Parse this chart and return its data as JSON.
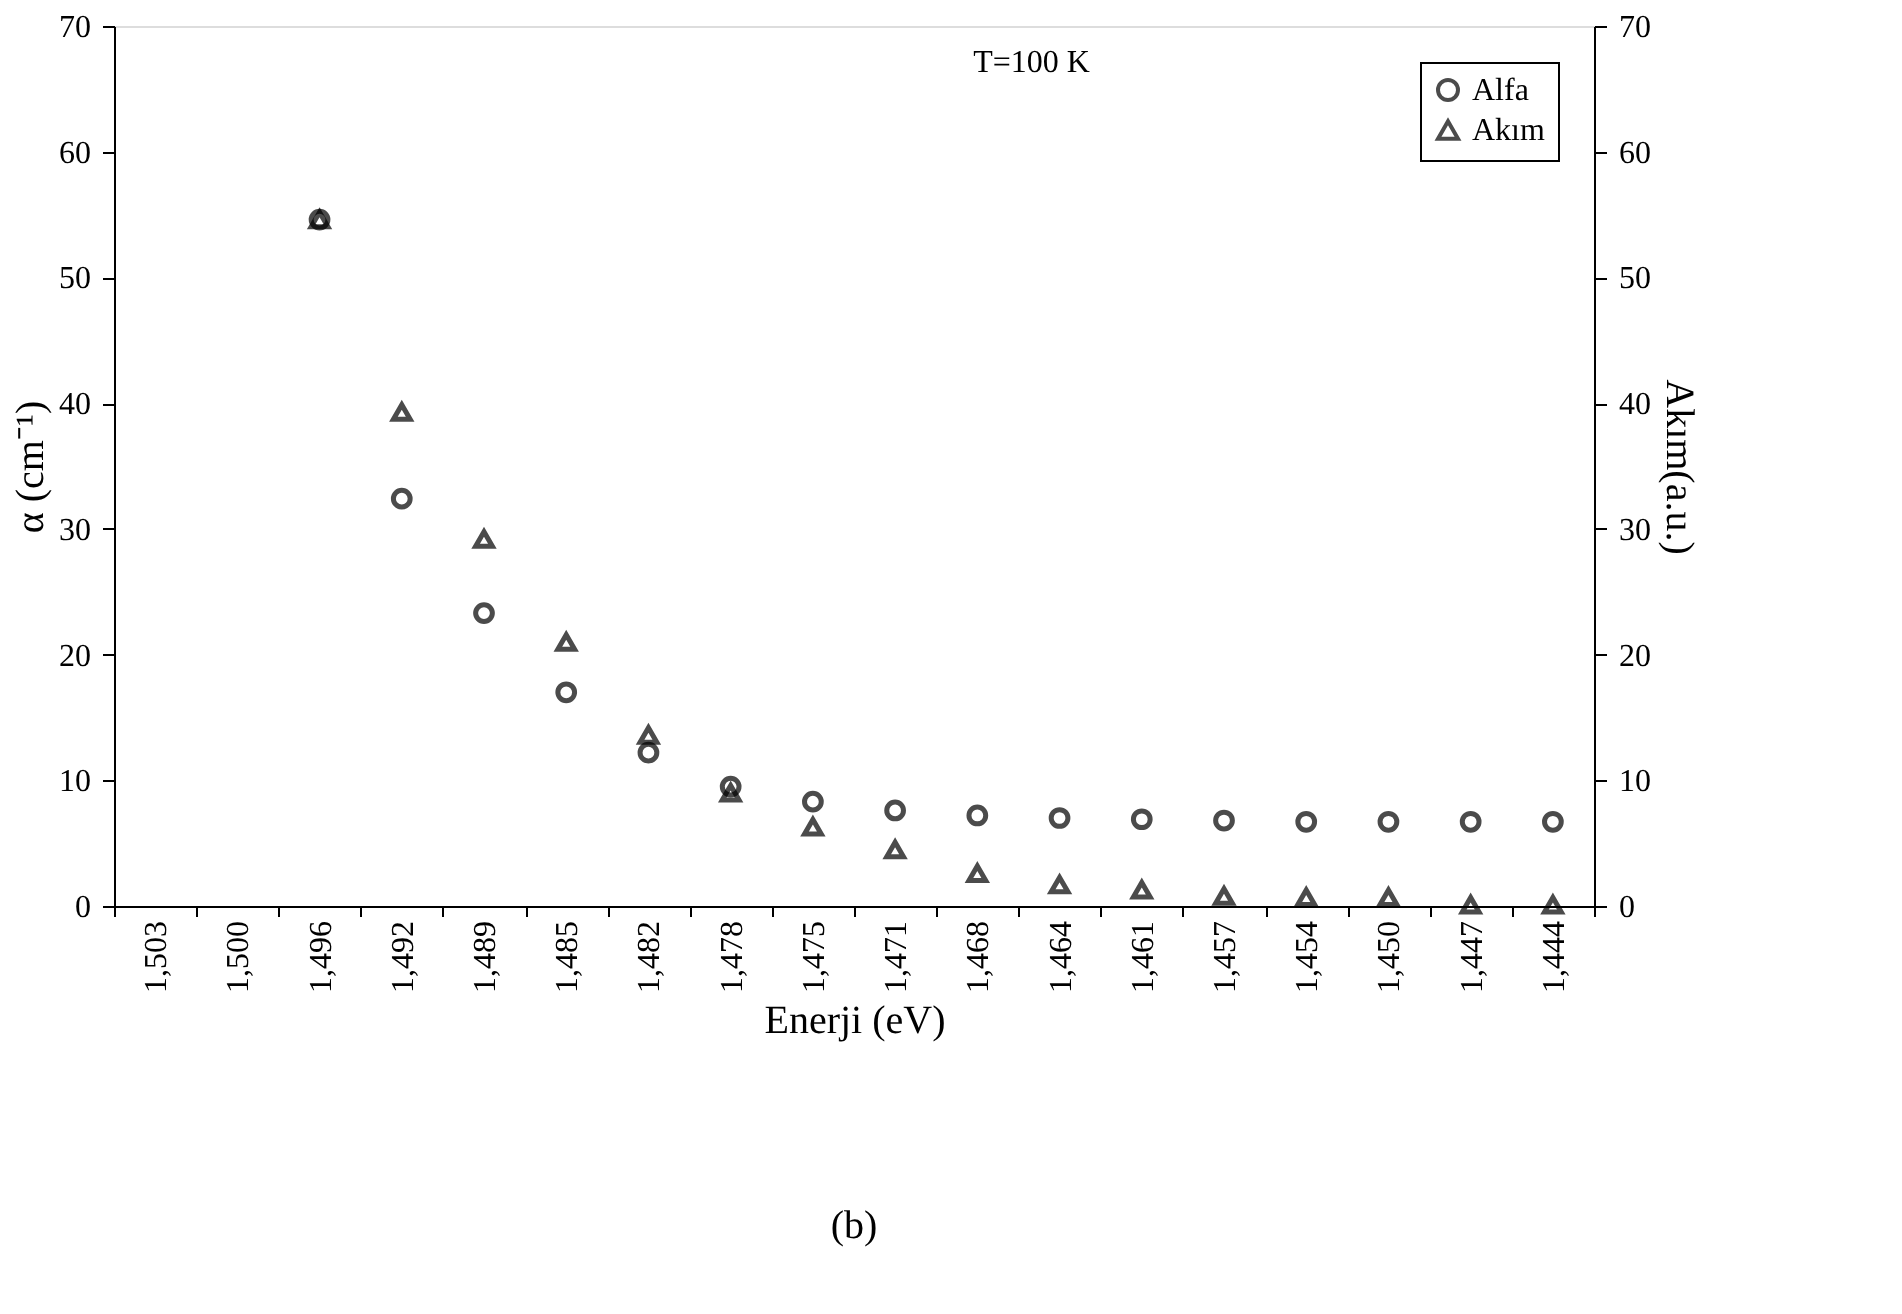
{
  "chart_data": {
    "type": "scatter",
    "xlabel": "Enerji (eV)",
    "ylabel": "α (cm⁻¹)",
    "y2label": "Akım(a.u.)",
    "categories": [
      "1,503",
      "1,500",
      "1,496",
      "1,492",
      "1,489",
      "1,485",
      "1,482",
      "1,478",
      "1,475",
      "1,471",
      "1,468",
      "1,464",
      "1,461",
      "1,457",
      "1,454",
      "1,450",
      "1,447",
      "1,444"
    ],
    "series": [
      {
        "name": "Alfa",
        "color": "#000000",
        "marker": "circle",
        "values": [
          null,
          null,
          54.6,
          32.4,
          23.3,
          17.0,
          12.2,
          9.5,
          8.3,
          7.6,
          7.2,
          7.0,
          6.9,
          6.8,
          6.7,
          6.7,
          6.7,
          6.7
        ]
      },
      {
        "name": "Akım",
        "color": "#000000",
        "marker": "triangle",
        "axis": "y2",
        "values": [
          null,
          null,
          54.6,
          39.3,
          29.2,
          21.0,
          13.6,
          9.0,
          6.3,
          4.5,
          2.6,
          1.7,
          1.3,
          0.8,
          0.7,
          0.7,
          0.1,
          0.1
        ]
      }
    ],
    "ylim": [
      0,
      70
    ],
    "yticks": [
      0,
      10,
      20,
      30,
      40,
      50,
      60,
      70
    ],
    "y2lim": [
      0,
      70
    ],
    "y2ticks": [
      0,
      10,
      20,
      30,
      40,
      50,
      60,
      70
    ],
    "annotations": [
      "T=100 K",
      "(b)"
    ],
    "legend": "top right",
    "grid": false
  }
}
